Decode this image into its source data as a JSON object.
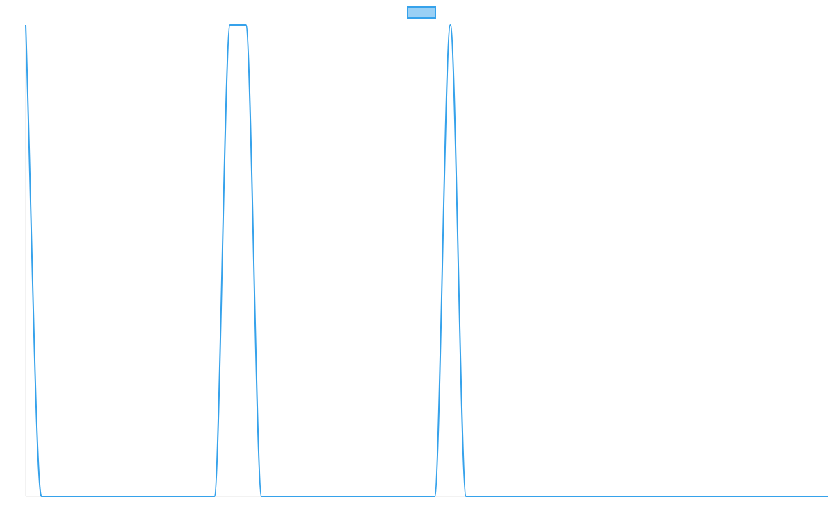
{
  "chart_data": {
    "type": "line",
    "title": "",
    "xlabel": "",
    "ylabel": "",
    "grid": false,
    "legend": {
      "position": "top-center",
      "entries": [
        {
          "label": "",
          "swatch_fill": "#9ad0f5",
          "swatch_stroke": "#36a2eb"
        }
      ]
    },
    "xlim": [
      0,
      51
    ],
    "ylim": [
      0,
      1
    ],
    "series": [
      {
        "color": "#36a2eb",
        "x": [
          0,
          1,
          12,
          13,
          14,
          15,
          26,
          27,
          28,
          51
        ],
        "y": [
          1,
          0,
          0,
          1,
          1,
          0,
          0,
          1,
          0,
          0
        ]
      }
    ]
  }
}
